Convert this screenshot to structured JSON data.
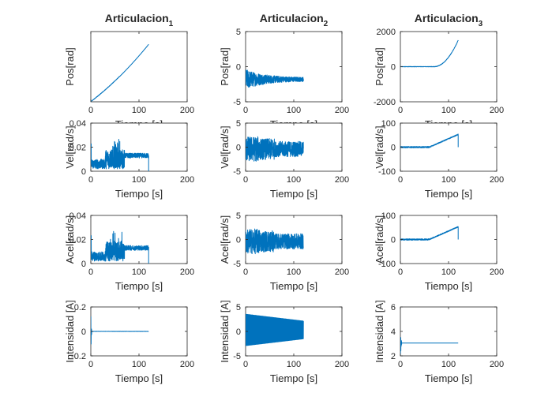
{
  "chart_data": [
    {
      "type": "line",
      "title": "Articulacion",
      "title_sub": "1",
      "ylabel": "Pos[rad]",
      "xlabel": "Tiempo [s]",
      "xlim": [
        0,
        200
      ],
      "ylim": [
        0,
        1.5
      ],
      "xticks": [
        0,
        100,
        200
      ],
      "yticks": [],
      "series": [
        {
          "color": "#0072bd",
          "shape": "pos1",
          "x_end": 120
        }
      ]
    },
    {
      "type": "line",
      "title": "Articulacion",
      "title_sub": "2",
      "ylabel": "Pos[rad]",
      "xlabel": "Tiempo [s]",
      "xlim": [
        0,
        200
      ],
      "ylim": [
        -5,
        5
      ],
      "xticks": [
        0,
        100,
        200
      ],
      "yticks": [
        -5,
        0,
        5
      ],
      "series": [
        {
          "color": "#0072bd",
          "shape": "pos2",
          "x_end": 120
        }
      ]
    },
    {
      "type": "line",
      "title": "Articulacion",
      "title_sub": "3",
      "ylabel": "Pos[rad]",
      "xlabel": "Tiempo [s]",
      "xlim": [
        0,
        200
      ],
      "ylim": [
        -2000,
        2000
      ],
      "xticks": [
        0,
        100,
        200
      ],
      "yticks": [
        -2000,
        0,
        2000
      ],
      "series": [
        {
          "color": "#0072bd",
          "shape": "pos3",
          "x_end": 120
        }
      ]
    },
    {
      "type": "line",
      "ylabel": "Vel[rad/s]",
      "xlabel": "Tiempo [s]",
      "xlim": [
        0,
        200
      ],
      "ylim": [
        0,
        0.04
      ],
      "xticks": [
        0,
        100,
        200
      ],
      "yticks": [
        0,
        0.02,
        0.04
      ],
      "series": [
        {
          "color": "#0072bd",
          "shape": "vel1",
          "x_end": 120
        }
      ]
    },
    {
      "type": "line",
      "ylabel": "Vel[rad/s]",
      "xlabel": "Tiempo [s]",
      "xlim": [
        0,
        200
      ],
      "ylim": [
        -5,
        5
      ],
      "xticks": [
        0,
        100,
        200
      ],
      "yticks": [
        -5,
        0,
        5
      ],
      "series": [
        {
          "color": "#0072bd",
          "shape": "vel2",
          "x_end": 120
        }
      ]
    },
    {
      "type": "line",
      "ylabel": "Vel[rad/s]",
      "xlabel": "Tiempo [s]",
      "xlim": [
        0,
        200
      ],
      "ylim": [
        -100,
        100
      ],
      "xticks": [
        0,
        100,
        200
      ],
      "yticks": [
        -100,
        0,
        100
      ],
      "series": [
        {
          "color": "#0072bd",
          "shape": "vel3",
          "x_end": 120
        }
      ]
    },
    {
      "type": "line",
      "ylabel": "Acel[rad/s]",
      "xlabel": "Tiempo [s]",
      "xlim": [
        0,
        200
      ],
      "ylim": [
        0,
        0.04
      ],
      "xticks": [
        0,
        100,
        200
      ],
      "yticks": [
        0,
        0.02,
        0.04
      ],
      "series": [
        {
          "color": "#0072bd",
          "shape": "acc1",
          "x_end": 120
        }
      ]
    },
    {
      "type": "line",
      "ylabel": "Acel[rad/s]",
      "xlabel": "Tiempo [s]",
      "xlim": [
        0,
        200
      ],
      "ylim": [
        -5,
        5
      ],
      "xticks": [
        0,
        100,
        200
      ],
      "yticks": [
        -5,
        0,
        5
      ],
      "series": [
        {
          "color": "#0072bd",
          "shape": "acc2",
          "x_end": 120
        }
      ]
    },
    {
      "type": "line",
      "ylabel": "Acel[rad/s]",
      "xlabel": "Tiempo [s]",
      "xlim": [
        0,
        200
      ],
      "ylim": [
        -100,
        100
      ],
      "xticks": [
        0,
        100,
        200
      ],
      "yticks": [
        -100,
        0,
        100
      ],
      "series": [
        {
          "color": "#0072bd",
          "shape": "acc3",
          "x_end": 120
        }
      ]
    },
    {
      "type": "line",
      "ylabel": "Intensidad [A]",
      "xlabel": "Tiempo [s]",
      "xlim": [
        0,
        200
      ],
      "ylim": [
        -0.2,
        0.2
      ],
      "xticks": [
        0,
        100,
        200
      ],
      "yticks": [
        -0.2,
        0,
        0.2
      ],
      "series": [
        {
          "color": "#0072bd",
          "shape": "cur1",
          "x_end": 120
        }
      ]
    },
    {
      "type": "line",
      "ylabel": "Intensidad [A]",
      "xlabel": "Tiempo [s]",
      "xlim": [
        0,
        200
      ],
      "ylim": [
        -5,
        5
      ],
      "xticks": [
        0,
        100,
        200
      ],
      "yticks": [
        -5,
        0,
        5
      ],
      "series": [
        {
          "color": "#0072bd",
          "shape": "cur2",
          "x_end": 120
        }
      ]
    },
    {
      "type": "line",
      "ylabel": "Intensidad [A]",
      "xlabel": "Tiempo [s]",
      "xlim": [
        0,
        200
      ],
      "ylim": [
        2,
        6
      ],
      "xticks": [
        0,
        100,
        200
      ],
      "yticks": [
        2,
        4,
        6
      ],
      "series": [
        {
          "color": "#0072bd",
          "shape": "cur3",
          "x_end": 120
        }
      ]
    }
  ]
}
